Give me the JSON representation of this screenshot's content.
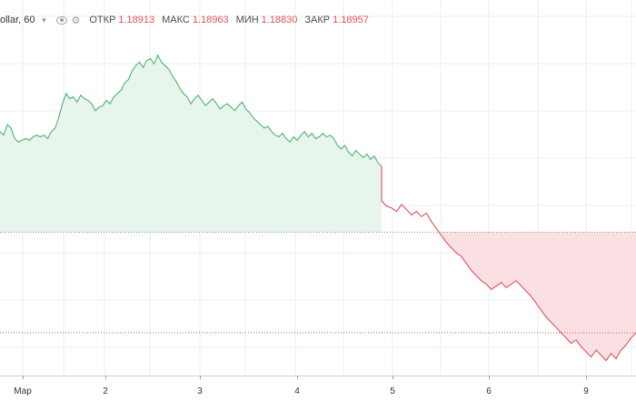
{
  "legend": {
    "symbol": "ollar, 60",
    "open_label": "ОТКР",
    "open_value": "1.18913",
    "high_label": "МАКС",
    "high_value": "1.18963",
    "low_label": "МИН",
    "low_value": "1.18830",
    "close_label": "ЗАКР",
    "close_value": "1.18957"
  },
  "colors": {
    "up_line": "#4bb372",
    "up_fill": "#e8f5ec",
    "down_line": "#e0505a",
    "down_fill": "#fbe0e3",
    "value": "#e0505a",
    "grid": "#eceef1"
  },
  "chart_data": {
    "type": "area",
    "baseline_style": "dotted",
    "reference_level_style": "dotted-red",
    "x_tick_labels": [
      "Мар",
      "2",
      "3",
      "4",
      "5",
      "6",
      "9"
    ],
    "price_axis_labels_shown": false,
    "series_green": [
      0.58,
      0.56,
      0.62,
      0.6,
      0.54,
      0.52,
      0.53,
      0.54,
      0.53,
      0.55,
      0.56,
      0.55,
      0.56,
      0.54,
      0.58,
      0.6,
      0.66,
      0.74,
      0.8,
      0.77,
      0.78,
      0.75,
      0.79,
      0.77,
      0.76,
      0.74,
      0.7,
      0.72,
      0.73,
      0.76,
      0.74,
      0.78,
      0.8,
      0.82,
      0.86,
      0.88,
      0.93,
      0.96,
      0.98,
      0.95,
      0.99,
      1.0,
      0.97,
      1.02,
      0.98,
      0.96,
      0.94,
      0.9,
      0.87,
      0.83,
      0.8,
      0.78,
      0.74,
      0.77,
      0.79,
      0.76,
      0.73,
      0.75,
      0.77,
      0.74,
      0.71,
      0.73,
      0.74,
      0.72,
      0.7,
      0.73,
      0.75,
      0.71,
      0.69,
      0.66,
      0.64,
      0.62,
      0.6,
      0.61,
      0.58,
      0.56,
      0.55,
      0.57,
      0.54,
      0.52,
      0.55,
      0.53,
      0.56,
      0.58,
      0.55,
      0.57,
      0.54,
      0.55,
      0.57,
      0.55,
      0.56,
      0.54,
      0.5,
      0.48,
      0.5,
      0.46,
      0.44,
      0.47,
      0.45,
      0.43,
      0.45,
      0.42,
      0.44,
      0.4,
      0.38
    ],
    "series_red": [
      0.18,
      0.15,
      0.14,
      0.12,
      0.16,
      0.13,
      0.1,
      0.12,
      0.09,
      0.11,
      0.06,
      0.02,
      -0.02,
      -0.06,
      -0.09,
      -0.12,
      -0.14,
      -0.18,
      -0.22,
      -0.25,
      -0.28,
      -0.3,
      -0.33,
      -0.31,
      -0.29,
      -0.32,
      -0.3,
      -0.28,
      -0.31,
      -0.34,
      -0.37,
      -0.41,
      -0.45,
      -0.49,
      -0.52,
      -0.55,
      -0.58,
      -0.61,
      -0.64,
      -0.62,
      -0.66,
      -0.69,
      -0.72,
      -0.68,
      -0.71,
      -0.74,
      -0.7,
      -0.73,
      -0.68,
      -0.65,
      -0.61,
      -0.58
    ],
    "baseline": 0.0,
    "reference_level": -0.58,
    "ylim": [
      -0.8,
      1.15
    ]
  }
}
